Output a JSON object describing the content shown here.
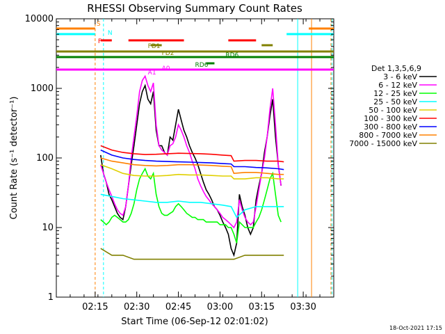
{
  "chart_data": {
    "type": "line",
    "title": "RHESSI Observing Summary Count Rates",
    "xlabel": "Start Time (06-Sep-12 02:01:02)",
    "ylabel": "Count Rate (s⁻¹ detector⁻¹)",
    "yscale": "log",
    "ylim": [
      1,
      10000
    ],
    "xlim_minutes": [
      0,
      100
    ],
    "x_ticks": [
      {
        "label": "02:15",
        "minutes": 14
      },
      {
        "label": "02:30",
        "minutes": 29
      },
      {
        "label": "02:45",
        "minutes": 44
      },
      {
        "label": "03:00",
        "minutes": 59
      },
      {
        "label": "03:15",
        "minutes": 74
      },
      {
        "label": "03:30",
        "minutes": 89
      }
    ],
    "y_ticks": [
      {
        "label": "1",
        "value": 1
      },
      {
        "label": "10",
        "value": 10
      },
      {
        "label": "100",
        "value": 100
      },
      {
        "label": "1000",
        "value": 1000
      },
      {
        "label": "10000",
        "value": 10000
      }
    ],
    "legend_title": "Det 1,3,5,6,9",
    "series": [
      {
        "name": "3 - 6 keV",
        "color": "#000000",
        "x": [
          16,
          17,
          18,
          19,
          20,
          21,
          22,
          23,
          24,
          25,
          26,
          27,
          28,
          29,
          30,
          31,
          32,
          33,
          34,
          35,
          36,
          37,
          38,
          39,
          40,
          41,
          42,
          43,
          44,
          45,
          46,
          47,
          48,
          49,
          50,
          51,
          52,
          53,
          54,
          55,
          56,
          57,
          58,
          59,
          60,
          61,
          62,
          63,
          64,
          65,
          66,
          67,
          68,
          69,
          70,
          71,
          72,
          73,
          74,
          75,
          76,
          77,
          78,
          79,
          80,
          81
        ],
        "y": [
          110,
          60,
          45,
          30,
          25,
          20,
          16,
          14,
          13,
          20,
          40,
          80,
          150,
          300,
          600,
          900,
          1100,
          700,
          600,
          900,
          250,
          150,
          150,
          120,
          110,
          200,
          180,
          300,
          500,
          350,
          250,
          200,
          150,
          120,
          100,
          80,
          60,
          45,
          35,
          30,
          25,
          20,
          18,
          15,
          12,
          10,
          8,
          5,
          4,
          6,
          30,
          20,
          15,
          10,
          8,
          10,
          25,
          40,
          60,
          120,
          200,
          400,
          700,
          200,
          80,
          40
        ]
      },
      {
        "name": "6 - 12 keV",
        "color": "#ff00ff",
        "x": [
          16,
          17,
          18,
          19,
          20,
          21,
          22,
          23,
          24,
          25,
          26,
          27,
          28,
          29,
          30,
          31,
          32,
          33,
          34,
          35,
          36,
          37,
          38,
          39,
          40,
          41,
          42,
          43,
          44,
          45,
          46,
          47,
          48,
          49,
          50,
          51,
          52,
          53,
          54,
          55,
          56,
          57,
          58,
          59,
          60,
          61,
          62,
          63,
          64,
          65,
          66,
          67,
          68,
          69,
          70,
          71,
          72,
          73,
          74,
          75,
          76,
          77,
          78,
          79,
          80,
          81
        ],
        "y": [
          80,
          60,
          45,
          35,
          28,
          22,
          18,
          16,
          15,
          20,
          40,
          100,
          200,
          400,
          900,
          1300,
          1500,
          1100,
          900,
          1200,
          300,
          150,
          130,
          120,
          110,
          150,
          160,
          200,
          300,
          250,
          200,
          150,
          120,
          90,
          70,
          50,
          40,
          33,
          28,
          25,
          22,
          20,
          18,
          16,
          14,
          13,
          12,
          11,
          10,
          12,
          25,
          18,
          14,
          12,
          11,
          12,
          20,
          35,
          60,
          100,
          200,
          500,
          1000,
          300,
          80,
          40
        ]
      },
      {
        "name": "12 - 25 keV",
        "color": "#00ff00",
        "x": [
          16,
          17,
          18,
          19,
          20,
          21,
          22,
          23,
          24,
          25,
          26,
          27,
          28,
          29,
          30,
          31,
          32,
          33,
          34,
          35,
          36,
          37,
          38,
          39,
          40,
          41,
          42,
          43,
          44,
          45,
          46,
          47,
          48,
          49,
          50,
          51,
          52,
          53,
          54,
          55,
          56,
          57,
          58,
          59,
          60,
          61,
          62,
          63,
          64,
          65,
          66,
          67,
          68,
          69,
          70,
          71,
          72,
          73,
          74,
          75,
          76,
          77,
          78,
          79,
          80,
          81
        ],
        "y": [
          13,
          12,
          11,
          12,
          14,
          15,
          14,
          13,
          12,
          12,
          13,
          16,
          22,
          35,
          50,
          60,
          70,
          55,
          50,
          60,
          30,
          20,
          16,
          15,
          15,
          16,
          17,
          20,
          22,
          20,
          18,
          16,
          15,
          14,
          14,
          13,
          13,
          13,
          12,
          12,
          12,
          12,
          12,
          11,
          11,
          11,
          10,
          10,
          8,
          6,
          12,
          11,
          10,
          10,
          10,
          10,
          12,
          14,
          18,
          25,
          35,
          50,
          60,
          30,
          15,
          12
        ]
      },
      {
        "name": "25 - 50 keV",
        "color": "#00ffff",
        "x": [
          16,
          20,
          24,
          28,
          32,
          36,
          40,
          44,
          48,
          52,
          56,
          60,
          63,
          65,
          68,
          72,
          76,
          80,
          82
        ],
        "y": [
          30,
          28,
          26,
          25,
          24,
          23,
          23,
          24,
          23,
          23,
          22,
          21,
          20,
          14,
          18,
          20,
          20,
          20,
          20
        ]
      },
      {
        "name": "50 - 100 keV",
        "color": "#e0d000",
        "x": [
          16,
          20,
          24,
          28,
          32,
          36,
          40,
          44,
          48,
          52,
          56,
          60,
          63,
          64,
          68,
          72,
          76,
          80,
          82
        ],
        "y": [
          80,
          70,
          60,
          56,
          55,
          55,
          56,
          58,
          57,
          57,
          56,
          55,
          55,
          50,
          50,
          52,
          52,
          50,
          50
        ]
      },
      {
        "name": "100 - 300 keV",
        "color": "#ff0000",
        "x": [
          16,
          20,
          24,
          28,
          32,
          36,
          40,
          44,
          48,
          52,
          56,
          60,
          63,
          64,
          68,
          72,
          76,
          80,
          82
        ],
        "y": [
          150,
          130,
          120,
          115,
          112,
          113,
          115,
          117,
          116,
          115,
          113,
          110,
          108,
          90,
          92,
          92,
          90,
          90,
          88
        ]
      },
      {
        "name": "300 - 800 keV",
        "color": "#0000ff",
        "x": [
          16,
          20,
          24,
          28,
          32,
          36,
          40,
          44,
          48,
          52,
          56,
          60,
          63,
          64,
          68,
          72,
          76,
          80,
          82
        ],
        "y": [
          130,
          110,
          100,
          95,
          92,
          90,
          89,
          88,
          87,
          86,
          85,
          83,
          82,
          75,
          75,
          73,
          72,
          70,
          68
        ]
      },
      {
        "name": "800 - 7000 keV",
        "color": "#ff8000",
        "x": [
          16,
          20,
          24,
          28,
          32,
          36,
          40,
          44,
          48,
          52,
          56,
          60,
          63,
          64,
          68,
          72,
          76,
          80,
          82
        ],
        "y": [
          100,
          90,
          85,
          80,
          78,
          77,
          78,
          80,
          80,
          79,
          78,
          76,
          75,
          60,
          62,
          62,
          60,
          58,
          58
        ]
      },
      {
        "name": "7000 - 15000 keV",
        "color": "#808000",
        "x": [
          16,
          20,
          24,
          28,
          32,
          36,
          40,
          44,
          48,
          52,
          56,
          60,
          63,
          64,
          68,
          72,
          76,
          80,
          82
        ],
        "y": [
          5,
          4,
          4,
          3.5,
          3.5,
          3.5,
          3.5,
          3.5,
          3.5,
          3.5,
          3.5,
          3.5,
          3.5,
          3.5,
          4,
          4,
          4,
          4,
          4
        ]
      }
    ],
    "flags": [
      {
        "label": "S",
        "color": "#ff8000",
        "segments": [
          [
            0,
            14
          ],
          [
            91,
            100
          ]
        ]
      },
      {
        "label": "N",
        "color": "#00ffff",
        "segments": [
          [
            0,
            14
          ],
          [
            83,
            100
          ]
        ]
      },
      {
        "label": "F",
        "color": "#ff0000",
        "segments": [
          [
            16,
            20
          ],
          [
            26,
            46
          ],
          [
            62,
            72
          ]
        ]
      },
      {
        "label": "FD1",
        "color": "#808000",
        "segments": [
          [
            34,
            38
          ],
          [
            74,
            78
          ]
        ]
      },
      {
        "label": "FD2",
        "color": "#808000",
        "segments": [
          [
            0,
            100
          ]
        ]
      },
      {
        "label": "RD6",
        "color": "#008000",
        "segments": [
          [
            0,
            100
          ]
        ]
      },
      {
        "label": "RD6",
        "color": "#008000",
        "segments": [
          [
            54,
            57
          ]
        ]
      },
      {
        "label": "A1",
        "color": "#ff00ff",
        "segments": [
          [
            0,
            100
          ]
        ]
      },
      {
        "label": "A0",
        "color": "#ff00ff",
        "segments": [
          [
            36,
            40
          ],
          [
            74,
            78
          ]
        ]
      }
    ],
    "footer": "18-Oct-2021 17:15"
  }
}
